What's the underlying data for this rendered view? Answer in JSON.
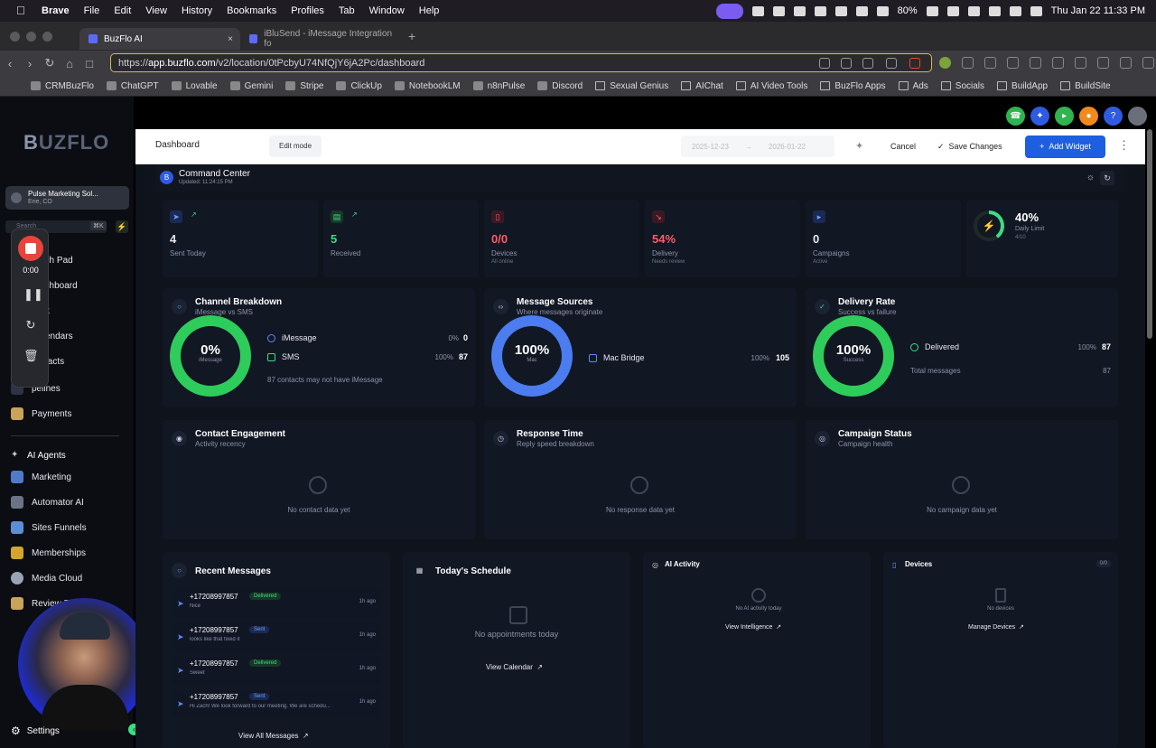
{
  "menubar": {
    "app": "Brave",
    "items": [
      "File",
      "Edit",
      "View",
      "History",
      "Bookmarks",
      "Profiles",
      "Tab",
      "Window",
      "Help"
    ],
    "battery": "80%",
    "clock": "Thu Jan 22  11:33 PM"
  },
  "tabs": [
    {
      "label": "BuzFlo AI",
      "close": "×"
    },
    {
      "label": "iBluSend - iMessage Integration fo"
    }
  ],
  "new_tab": "+",
  "address": {
    "scheme": "https://",
    "host": "app.buzflo.com",
    "path": "/v2/location/0tPcbyU74NfQjY6jA2Pc/dashboard"
  },
  "bookmarks": [
    "CRMBuzFlo",
    "ChatGPT",
    "Lovable",
    "Gemini",
    "Stripe",
    "ClickUp",
    "NotebookLM",
    "n8nPulse",
    "Discord",
    "Sexual Genius",
    "AIChat",
    "AI Video Tools",
    "BuzFlo Apps",
    "Ads",
    "Socials",
    "BuildApp",
    "BuildSite"
  ],
  "sidebar": {
    "logo_a": "B",
    "logo_b": "UZFLO",
    "location_name": "Pulse Marketing Sol...",
    "location_sub": "Erie, CO",
    "search_placeholder": "Search",
    "shortcut": "⌘K",
    "items": [
      "nch Pad",
      "ashboard",
      "x",
      "endars",
      "tacts",
      "pelines",
      "Payments"
    ],
    "ai_section": "AI Agents",
    "items2": [
      "Marketing",
      "Automator AI",
      "Sites Funnels",
      "Memberships",
      "Media Cloud",
      "Review R"
    ],
    "settings": "Settings"
  },
  "recorder": {
    "time": "0:00"
  },
  "editbar": {
    "dashboard": "Dashboard",
    "edit_mode": "Edit mode",
    "date_from": "2025-12-23",
    "arrow": "→",
    "date_to": "2026-01-22",
    "cancel": "Cancel",
    "save": "Save Changes",
    "add_widget": "Add Widget"
  },
  "command_center": {
    "title": "Command Center",
    "updated": "Updated: 11:24:15 PM"
  },
  "stats": [
    {
      "value": "4",
      "label": "Sent Today",
      "sub": "",
      "color": "#ffffff"
    },
    {
      "value": "5",
      "label": "Received",
      "sub": "",
      "color": "#3ddc84"
    },
    {
      "value": "0/0",
      "label": "Devices",
      "sub": "All online",
      "color": "#ff5a6a"
    },
    {
      "value": "54%",
      "label": "Delivery",
      "sub": "Needs review",
      "color": "#ff5a6a"
    },
    {
      "value": "0",
      "label": "Campaigns",
      "sub": "Active",
      "color": "#ffffff"
    },
    {
      "value": "40%",
      "label": "Daily Limit",
      "sub": "4/10",
      "color": "#ffffff"
    }
  ],
  "channel": {
    "title": "Channel Breakdown",
    "subtitle": "iMessage vs SMS",
    "pct": "0%",
    "pct_label": "iMessage",
    "rows": [
      {
        "label": "iMessage",
        "pct": "0%",
        "count": "0"
      },
      {
        "label": "SMS",
        "pct": "100%",
        "count": "87"
      }
    ],
    "note": "87 contacts may not have iMessage"
  },
  "sources": {
    "title": "Message Sources",
    "subtitle": "Where messages originate",
    "pct": "100%",
    "pct_label": "Mac",
    "rows": [
      {
        "label": "Mac Bridge",
        "pct": "100%",
        "count": "105"
      }
    ]
  },
  "delivery": {
    "title": "Delivery Rate",
    "subtitle": "Success vs failure",
    "pct": "100%",
    "pct_label": "Success",
    "rows": [
      {
        "label": "Delivered",
        "pct": "100%",
        "count": "87"
      }
    ],
    "total_label": "Total messages",
    "total": "87"
  },
  "engagement": {
    "title": "Contact Engagement",
    "subtitle": "Activity recency",
    "empty": "No contact data yet"
  },
  "response": {
    "title": "Response Time",
    "subtitle": "Reply speed breakdown",
    "empty": "No response data yet"
  },
  "campaign": {
    "title": "Campaign Status",
    "subtitle": "Campaign health",
    "empty": "No campaign data yet"
  },
  "recent": {
    "title": "Recent Messages",
    "messages": [
      {
        "phone": "+17208997857",
        "status": "Delivered",
        "text": "Nice",
        "ago": "1h ago"
      },
      {
        "phone": "+17208997857",
        "status": "Sent",
        "text": "looks like that fixed it",
        "ago": "1h ago"
      },
      {
        "phone": "+17208997857",
        "status": "Delivered",
        "text": "Sweet",
        "ago": "1h ago"
      },
      {
        "phone": "+17208997857",
        "status": "Sent",
        "text": "Hi Zach! We look forward to our meeting. We are schedu...",
        "ago": "1h ago"
      }
    ],
    "view_all": "View All Messages"
  },
  "schedule": {
    "title": "Today's Schedule",
    "empty": "No appointments today",
    "link": "View Calendar"
  },
  "ai": {
    "title": "AI Activity",
    "empty": "No AI activity today",
    "link": "View Intelligence"
  },
  "devices": {
    "title": "Devices",
    "badge": "0/0",
    "empty": "No devices",
    "link": "Manage Devices"
  }
}
